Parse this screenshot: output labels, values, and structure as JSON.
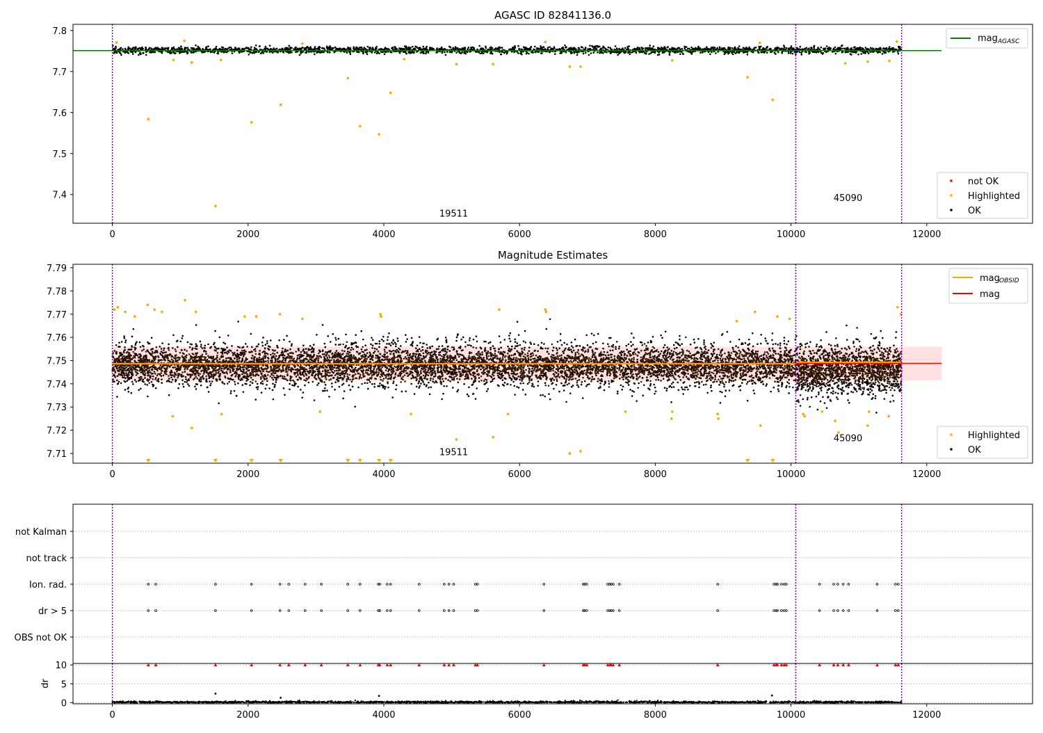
{
  "chart_data": [
    {
      "type": "scatter",
      "title": "AGASC ID 82841136.0",
      "xlim": [
        -580,
        13560
      ],
      "ylim": [
        7.33,
        7.815
      ],
      "xticks": [
        0,
        2000,
        4000,
        6000,
        8000,
        10000,
        12000
      ],
      "yticks": [
        7.4,
        7.5,
        7.6,
        7.7,
        7.8
      ],
      "mag_agasc": 7.751,
      "mag_agasc_span": [
        -580,
        12220
      ],
      "obs_boundaries": [
        0,
        10070,
        11630
      ],
      "obsid_labels": [
        {
          "text": "19511",
          "x": 5030,
          "y": 7.346
        },
        {
          "text": "45090",
          "x": 10840,
          "y": 7.384
        }
      ],
      "ok_band": {
        "center": 7.752,
        "half_width": 0.009,
        "x_range": [
          0,
          11630
        ]
      },
      "highlighted": [
        {
          "x": 530,
          "y": 7.584
        },
        {
          "x": 1520,
          "y": 7.372
        },
        {
          "x": 2050,
          "y": 7.576
        },
        {
          "x": 2480,
          "y": 7.619
        },
        {
          "x": 3470,
          "y": 7.684
        },
        {
          "x": 3650,
          "y": 7.567
        },
        {
          "x": 3930,
          "y": 7.547
        },
        {
          "x": 4100,
          "y": 7.648
        },
        {
          "x": 5070,
          "y": 7.718
        },
        {
          "x": 5610,
          "y": 7.718
        },
        {
          "x": 6740,
          "y": 7.712
        },
        {
          "x": 6900,
          "y": 7.712
        },
        {
          "x": 9360,
          "y": 7.686
        },
        {
          "x": 9730,
          "y": 7.631
        },
        {
          "x": 900,
          "y": 7.728
        },
        {
          "x": 1170,
          "y": 7.722
        },
        {
          "x": 1600,
          "y": 7.728
        },
        {
          "x": 4300,
          "y": 7.73
        },
        {
          "x": 8250,
          "y": 7.727
        },
        {
          "x": 10800,
          "y": 7.72
        },
        {
          "x": 11130,
          "y": 7.724
        },
        {
          "x": 11450,
          "y": 7.726
        },
        {
          "x": 60,
          "y": 7.771
        },
        {
          "x": 1060,
          "y": 7.775
        },
        {
          "x": 2800,
          "y": 7.768
        },
        {
          "x": 6380,
          "y": 7.772
        },
        {
          "x": 9540,
          "y": 7.77
        },
        {
          "x": 11560,
          "y": 7.773
        }
      ],
      "legend_line": [
        "mag",
        "AGASC"
      ],
      "legend_markers": [
        {
          "label": "not OK",
          "color": "#ff0000"
        },
        {
          "label": "Highlighted",
          "color": "#ffa500"
        },
        {
          "label": "OK",
          "color": "#000000"
        }
      ]
    },
    {
      "type": "scatter",
      "title": "Magnitude Estimates",
      "xlim": [
        -580,
        13560
      ],
      "ylim": [
        7.7058,
        7.7915
      ],
      "xticks": [
        0,
        2000,
        4000,
        6000,
        8000,
        10000,
        12000
      ],
      "yticks": [
        7.71,
        7.72,
        7.73,
        7.74,
        7.75,
        7.76,
        7.77,
        7.78,
        7.79
      ],
      "mag": 7.7488,
      "mag_span": [
        0,
        12220
      ],
      "mag_std_band": [
        7.7415,
        7.756
      ],
      "mag_obsid": [
        {
          "x_range": [
            0,
            10070
          ],
          "value": 7.7486
        },
        {
          "x_range": [
            10070,
            11630
          ],
          "value": 7.7493
        }
      ],
      "ok_distribution": {
        "segment_1": {
          "x_range": [
            0,
            10070
          ],
          "mean": 7.748,
          "typical_spread": 0.007,
          "outlier_range": [
            7.728,
            7.768
          ]
        },
        "segment_2": {
          "x_range": [
            10070,
            11630
          ],
          "mean": 7.746,
          "typical_spread": 0.008,
          "outlier_range": [
            7.727,
            7.768
          ]
        }
      },
      "highlighted": [
        {
          "x": 30,
          "y": 7.772
        },
        {
          "x": 80,
          "y": 7.773
        },
        {
          "x": 190,
          "y": 7.771
        },
        {
          "x": 330,
          "y": 7.769
        },
        {
          "x": 520,
          "y": 7.774
        },
        {
          "x": 620,
          "y": 7.772
        },
        {
          "x": 730,
          "y": 7.771
        },
        {
          "x": 890,
          "y": 7.726
        },
        {
          "x": 1070,
          "y": 7.776
        },
        {
          "x": 1170,
          "y": 7.721
        },
        {
          "x": 1230,
          "y": 7.771
        },
        {
          "x": 1610,
          "y": 7.727
        },
        {
          "x": 1950,
          "y": 7.769
        },
        {
          "x": 2120,
          "y": 7.769
        },
        {
          "x": 2470,
          "y": 7.77
        },
        {
          "x": 2800,
          "y": 7.768
        },
        {
          "x": 3060,
          "y": 7.728
        },
        {
          "x": 3960,
          "y": 7.769
        },
        {
          "x": 3950,
          "y": 7.77
        },
        {
          "x": 4400,
          "y": 7.727
        },
        {
          "x": 5070,
          "y": 7.716
        },
        {
          "x": 5610,
          "y": 7.717
        },
        {
          "x": 5700,
          "y": 7.772
        },
        {
          "x": 5830,
          "y": 7.727
        },
        {
          "x": 6380,
          "y": 7.772
        },
        {
          "x": 6390,
          "y": 7.771
        },
        {
          "x": 6740,
          "y": 7.71
        },
        {
          "x": 6900,
          "y": 7.711
        },
        {
          "x": 7560,
          "y": 7.728
        },
        {
          "x": 8240,
          "y": 7.725
        },
        {
          "x": 8250,
          "y": 7.728
        },
        {
          "x": 8920,
          "y": 7.727
        },
        {
          "x": 8930,
          "y": 7.725
        },
        {
          "x": 9200,
          "y": 7.767
        },
        {
          "x": 9470,
          "y": 7.771
        },
        {
          "x": 9550,
          "y": 7.722
        },
        {
          "x": 9800,
          "y": 7.769
        },
        {
          "x": 9980,
          "y": 7.768
        },
        {
          "x": 10180,
          "y": 7.727
        },
        {
          "x": 10200,
          "y": 7.726
        },
        {
          "x": 10460,
          "y": 7.728
        },
        {
          "x": 10650,
          "y": 7.724
        },
        {
          "x": 10700,
          "y": 7.719
        },
        {
          "x": 11130,
          "y": 7.722
        },
        {
          "x": 11150,
          "y": 7.728
        },
        {
          "x": 11440,
          "y": 7.726
        },
        {
          "x": 11570,
          "y": 7.773
        },
        {
          "x": 11620,
          "y": 7.77
        }
      ],
      "below_axis_markers": [
        530,
        1520,
        2050,
        2480,
        3470,
        3650,
        3930,
        4100,
        9360,
        9730
      ],
      "obsid_labels": [
        {
          "text": "19511",
          "x": 5030,
          "y": 7.7093
        },
        {
          "text": "45090",
          "x": 10840,
          "y": 7.7153
        }
      ],
      "legend_lines": [
        {
          "label": [
            "mag",
            "OBSID"
          ],
          "color": "#ffa500"
        },
        {
          "label": [
            "mag",
            ""
          ],
          "color": "#ff0000"
        }
      ],
      "legend_markers": [
        {
          "label": "Highlighted",
          "color": "#ffa500"
        },
        {
          "label": "OK",
          "color": "#000000"
        }
      ]
    },
    {
      "type": "scatter",
      "xlim": [
        -580,
        13560
      ],
      "flag_labels": [
        "not Kalman",
        "not track",
        "Ion. rad.",
        "dr > 5",
        "OBS not OK"
      ],
      "flag_points": {
        "Ion. rad.": [
          530,
          640,
          1520,
          2050,
          2470,
          2600,
          2840,
          3080,
          3470,
          3650,
          3920,
          3940,
          4050,
          4100,
          4520,
          4890,
          4960,
          5030,
          5350,
          5380,
          6360,
          6940,
          6960,
          6990,
          7300,
          7330,
          7350,
          7380,
          7470,
          8920,
          9750,
          9780,
          9800,
          9860,
          9900,
          9930,
          10420,
          10630,
          10690,
          10770,
          10850,
          11270,
          11540,
          11580
        ],
        "dr > 5": [
          530,
          640,
          1520,
          2050,
          2470,
          2600,
          2840,
          3080,
          3470,
          3650,
          3920,
          3940,
          4050,
          4100,
          4520,
          4890,
          4960,
          5030,
          5350,
          5380,
          6360,
          6940,
          6960,
          6990,
          7300,
          7330,
          7350,
          7380,
          7470,
          8920,
          9750,
          9780,
          9800,
          9860,
          9900,
          9930,
          10420,
          10630,
          10690,
          10770,
          10850,
          11270,
          11540,
          11580
        ]
      },
      "obs_boundaries": [
        0,
        10070,
        11630
      ]
    },
    {
      "type": "scatter",
      "ylabel": "dr",
      "xlim": [
        -580,
        13560
      ],
      "ylim": [
        -0.3,
        10.4
      ],
      "xticks": [
        0,
        2000,
        4000,
        6000,
        8000,
        10000,
        12000
      ],
      "yticks": [
        0,
        5,
        10
      ],
      "dr_clip": 10,
      "dr_outliers": [
        {
          "x": 1520,
          "y": 2.4
        },
        {
          "x": 2480,
          "y": 1.3
        },
        {
          "x": 3930,
          "y": 1.8
        },
        {
          "x": 9720,
          "y": 1.9
        }
      ],
      "obs_boundaries": [
        0,
        10070,
        11630
      ]
    }
  ]
}
